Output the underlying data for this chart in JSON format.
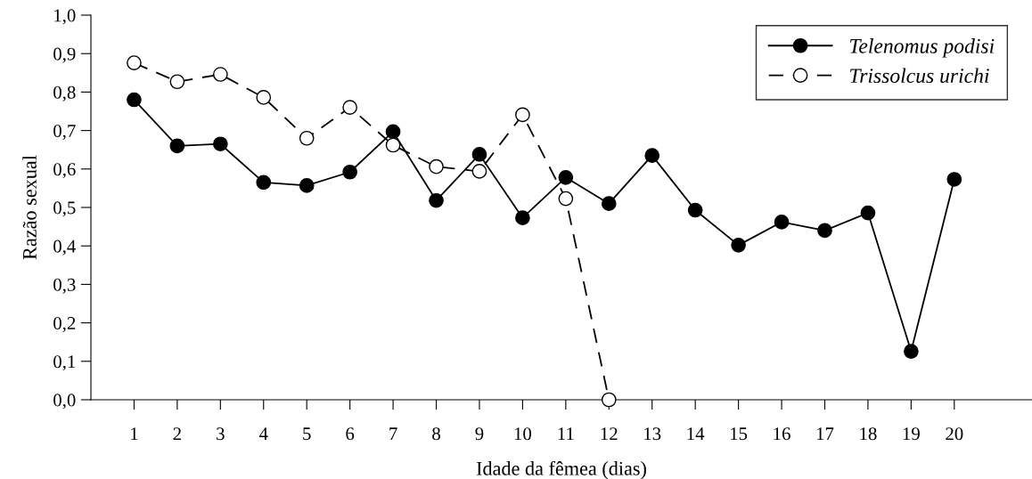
{
  "chart_data": {
    "type": "line",
    "xlabel": "Idade da fêmea (dias)",
    "ylabel": "Razão sexual",
    "x": [
      1,
      2,
      3,
      4,
      5,
      6,
      7,
      8,
      9,
      10,
      11,
      12,
      13,
      14,
      15,
      16,
      17,
      18,
      19,
      20
    ],
    "series": [
      {
        "name": "Telenomus podisi",
        "color": "#000000",
        "marker": "circle",
        "line_style": "solid",
        "values": [
          0.78,
          0.66,
          0.665,
          0.565,
          0.557,
          0.592,
          0.697,
          0.518,
          0.638,
          0.473,
          0.578,
          0.51,
          0.635,
          0.493,
          0.402,
          0.462,
          0.44,
          0.486,
          0.126,
          0.573
        ]
      },
      {
        "name": "Trissolcus urichi",
        "color": "#000000",
        "marker": "circle",
        "line_style": "dashed",
        "x": [
          1,
          2,
          3,
          4,
          5,
          6,
          7,
          8,
          9,
          10,
          11,
          12
        ],
        "values": [
          0.876,
          0.827,
          0.846,
          0.786,
          0.68,
          0.76,
          0.662,
          0.606,
          0.594,
          0.741,
          0.523,
          0.0
        ]
      }
    ],
    "xlim": [
      0,
      21.8
    ],
    "xticks": [
      1,
      2,
      3,
      4,
      5,
      6,
      7,
      8,
      9,
      10,
      11,
      12,
      13,
      14,
      15,
      16,
      17,
      18,
      19,
      20
    ],
    "ylim": [
      0,
      1
    ],
    "yticks": [
      {
        "value": 0,
        "label": "0,0"
      },
      {
        "value": 0.1,
        "label": "0,1"
      },
      {
        "value": 0.2,
        "label": "0,2"
      },
      {
        "value": 0.3,
        "label": "0,3"
      },
      {
        "value": 0.4,
        "label": "0,4"
      },
      {
        "value": 0.5,
        "label": "0,5"
      },
      {
        "value": 0.6,
        "label": "0,6"
      },
      {
        "value": 0.7,
        "label": "0,7"
      },
      {
        "value": 0.8,
        "label": "0,8"
      },
      {
        "value": 0.9,
        "label": "0,9"
      },
      {
        "value": 1.0,
        "label": "1,0"
      }
    ],
    "grid": false,
    "legend": "top right"
  }
}
